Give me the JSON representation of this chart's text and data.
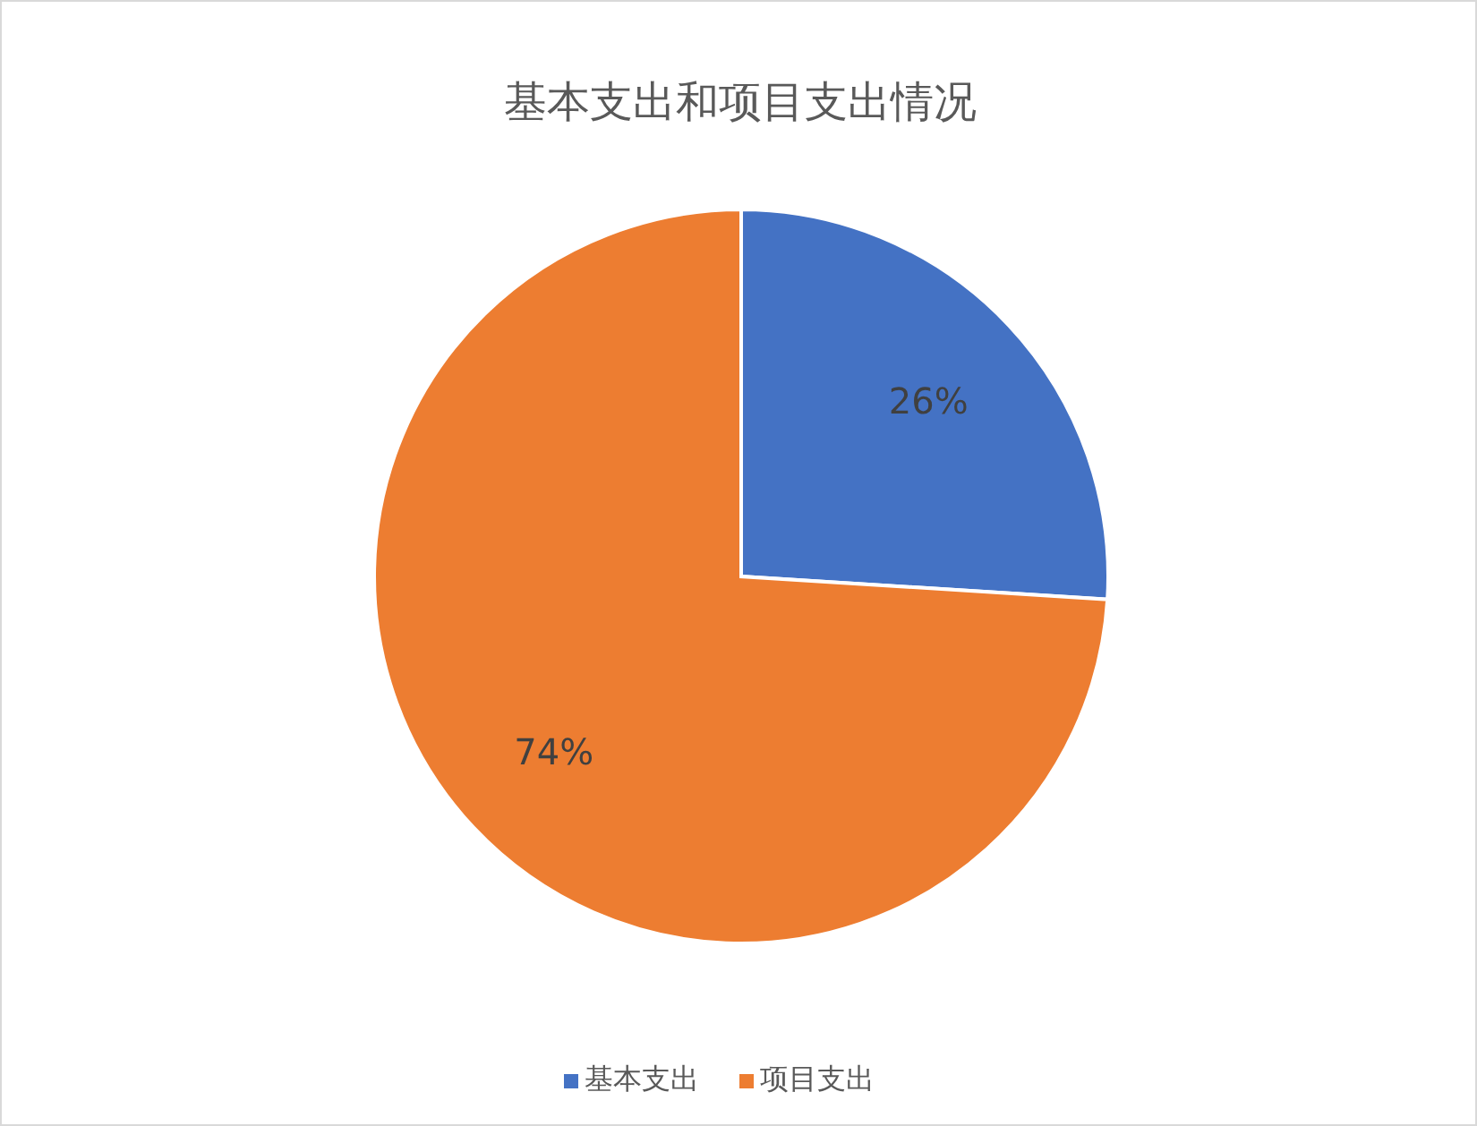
{
  "chart_data": {
    "type": "pie",
    "title": "基本支出和项目支出情况",
    "categories": [
      "基本支出",
      "项目支出"
    ],
    "values": [
      26,
      74
    ],
    "colors": [
      "#4472c4",
      "#ed7d31"
    ],
    "value_labels": [
      "26%",
      "74%"
    ],
    "legend": "bottom"
  }
}
